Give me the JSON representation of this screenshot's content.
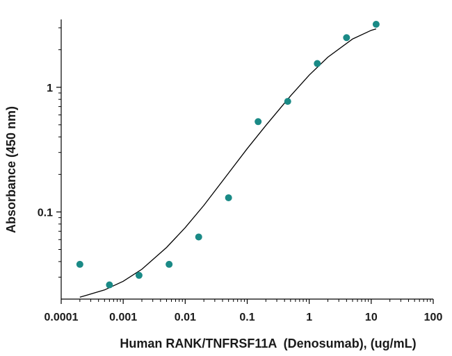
{
  "chart_data": {
    "type": "scatter",
    "title": "",
    "xlabel": "Human RANK/TNFRSF11A  (Denosumab), (ug/mL)",
    "ylabel": "Absorbance (450 nm)",
    "x_scale": "log",
    "y_scale": "log",
    "xlim": [
      0.0001,
      100
    ],
    "ylim": [
      0.02,
      3.5
    ],
    "x_tick_labels": [
      "0.0001",
      "0.001",
      "0.01",
      "0.1",
      "1",
      "10",
      "100"
    ],
    "y_tick_labels": [
      "0.1",
      "1"
    ],
    "grid": false,
    "legend": "none",
    "points": [
      {
        "x": 0.0002,
        "y": 0.038
      },
      {
        "x": 0.0006,
        "y": 0.026
      },
      {
        "x": 0.0018,
        "y": 0.031
      },
      {
        "x": 0.0055,
        "y": 0.038
      },
      {
        "x": 0.0165,
        "y": 0.063
      },
      {
        "x": 0.05,
        "y": 0.13
      },
      {
        "x": 0.15,
        "y": 0.53
      },
      {
        "x": 0.45,
        "y": 0.77
      },
      {
        "x": 1.35,
        "y": 1.55
      },
      {
        "x": 4.0,
        "y": 2.5
      },
      {
        "x": 12.0,
        "y": 3.2
      }
    ],
    "fit_curve": [
      {
        "x": 0.0002,
        "y": 0.0207
      },
      {
        "x": 0.0005,
        "y": 0.0237
      },
      {
        "x": 0.001,
        "y": 0.0278
      },
      {
        "x": 0.002,
        "y": 0.0347
      },
      {
        "x": 0.005,
        "y": 0.0519
      },
      {
        "x": 0.01,
        "y": 0.0748
      },
      {
        "x": 0.02,
        "y": 0.113
      },
      {
        "x": 0.05,
        "y": 0.205
      },
      {
        "x": 0.1,
        "y": 0.322
      },
      {
        "x": 0.2,
        "y": 0.494
      },
      {
        "x": 0.5,
        "y": 0.853
      },
      {
        "x": 1,
        "y": 1.253
      },
      {
        "x": 2,
        "y": 1.744
      },
      {
        "x": 5,
        "y": 2.438
      },
      {
        "x": 10,
        "y": 2.861
      },
      {
        "x": 12,
        "y": 2.94
      }
    ],
    "colors": {
      "points": "#1a8a86",
      "curve": "#000000",
      "axis": "#000000"
    }
  }
}
